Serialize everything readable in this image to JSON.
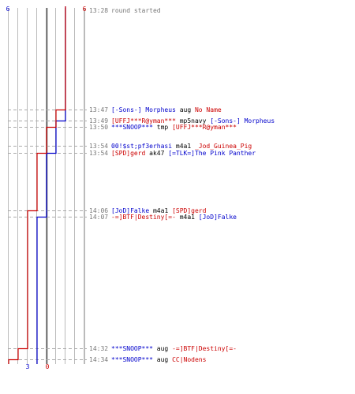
{
  "colors": {
    "blue": "#0000cc",
    "red": "#cc0000",
    "grid": "#bbbbbb",
    "axis": "#555555",
    "time": "#777777",
    "text": "#000000",
    "dash": "#aaaaaa"
  },
  "chart_data": {
    "type": "line",
    "title": "",
    "xlabel": "",
    "ylabel": "",
    "score_labels": {
      "blue_start": "6",
      "red_start": "6",
      "blue_end": "3",
      "red_end": "0"
    },
    "series": [
      {
        "name": "",
        "color": "blue",
        "steps": [
          {
            "t": "13:28",
            "v": 6
          },
          {
            "t": "13:49",
            "v": 5
          },
          {
            "t": "13:54",
            "v": 4
          },
          {
            "t": "14:07",
            "v": 3
          },
          {
            "t": "14:34",
            "v": 3
          }
        ]
      },
      {
        "name": "",
        "color": "red",
        "steps": [
          {
            "t": "13:28",
            "v": 6
          },
          {
            "t": "13:47",
            "v": 5
          },
          {
            "t": "13:50",
            "v": 4
          },
          {
            "t": "13:54",
            "v": 3
          },
          {
            "t": "14:06",
            "v": 2
          },
          {
            "t": "14:32",
            "v": 1
          },
          {
            "t": "14:34",
            "v": 0
          }
        ]
      }
    ],
    "events": [
      {
        "time": "13:28",
        "parts": [
          {
            "text": "round started",
            "color": "time"
          }
        ]
      },
      {
        "time": "13:47",
        "parts": [
          {
            "text": "[-Sons-] Morpheus",
            "color": "blue"
          },
          {
            "text": " aug ",
            "color": "text"
          },
          {
            "text": "No Name",
            "color": "red"
          }
        ]
      },
      {
        "time": "13:49",
        "parts": [
          {
            "text": "[UFFJ***R@yman***",
            "color": "red"
          },
          {
            "text": " mp5navy ",
            "color": "text"
          },
          {
            "text": "[-Sons-] Morpheus",
            "color": "blue"
          }
        ]
      },
      {
        "time": "13:50",
        "parts": [
          {
            "text": "***SNOOP***",
            "color": "blue"
          },
          {
            "text": " tmp ",
            "color": "text"
          },
          {
            "text": "[UFFJ***R@yman***",
            "color": "red"
          }
        ]
      },
      {
        "time": "13:54",
        "parts": [
          {
            "text": "00!$st;pf3erhasi",
            "color": "blue"
          },
          {
            "text": " m4a1 ",
            "color": "text"
          },
          {
            "text": "_Jod_Guinea_Pig",
            "color": "red"
          }
        ]
      },
      {
        "time": "13:54",
        "parts": [
          {
            "text": "[SPD]gerd",
            "color": "red"
          },
          {
            "text": " ak47 ",
            "color": "text"
          },
          {
            "text": "[=TLK=]The Pink Panther",
            "color": "blue"
          }
        ]
      },
      {
        "time": "14:06",
        "parts": [
          {
            "text": "[JoD]Falke",
            "color": "blue"
          },
          {
            "text": " m4a1 ",
            "color": "text"
          },
          {
            "text": "[SPD]gerd",
            "color": "red"
          }
        ]
      },
      {
        "time": "14:07",
        "parts": [
          {
            "text": "-=]BTF|Destiny[=-",
            "color": "red"
          },
          {
            "text": " m4a1 ",
            "color": "text"
          },
          {
            "text": "[JoD]Falke",
            "color": "blue"
          }
        ]
      },
      {
        "time": "14:32",
        "parts": [
          {
            "text": "***SNOOP***",
            "color": "blue"
          },
          {
            "text": " aug ",
            "color": "text"
          },
          {
            "text": "-=]BTF|Destiny[=-",
            "color": "red"
          }
        ]
      },
      {
        "time": "14:34",
        "parts": [
          {
            "text": "***SNOOP***",
            "color": "blue"
          },
          {
            "text": " aug ",
            "color": "text"
          },
          {
            "text": "CC|Nodens",
            "color": "red"
          }
        ]
      }
    ]
  }
}
